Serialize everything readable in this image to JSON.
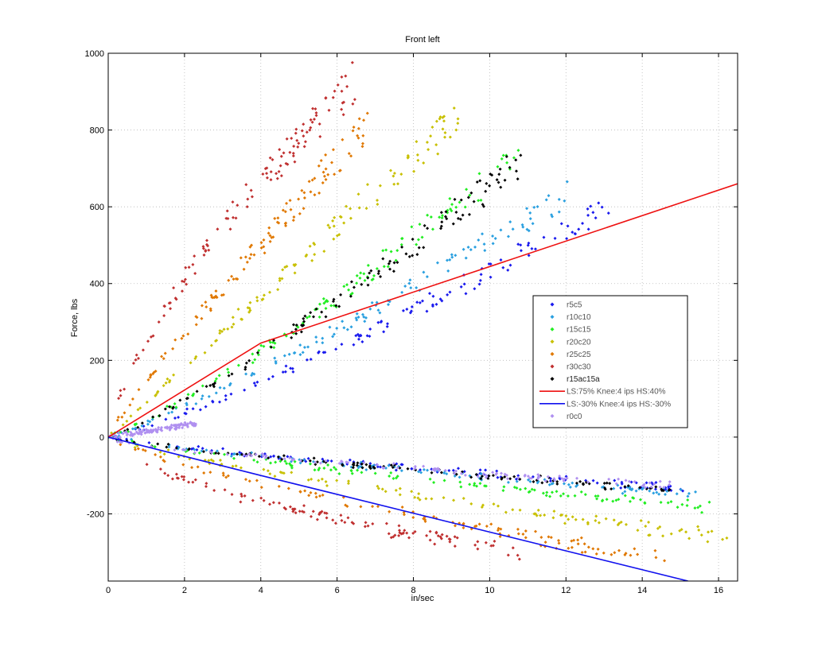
{
  "chart_data": {
    "type": "scatter",
    "title": "Front left",
    "xlabel": "in/sec",
    "ylabel": "Force, lbs",
    "xlim": [
      0,
      16.5
    ],
    "ylim": [
      -375,
      1000
    ],
    "xticks": [
      0,
      2,
      4,
      6,
      8,
      10,
      12,
      14,
      16
    ],
    "yticks": [
      -200,
      0,
      200,
      400,
      600,
      800,
      1000
    ],
    "grid": true,
    "legend_position": "right",
    "series": [
      {
        "name": "r5c5",
        "kind": "points",
        "color": "#1a1aee",
        "marker": "diamond",
        "comp": {
          "end_x": 13.4,
          "end_y": 615,
          "k": 1.2
        },
        "reb": {
          "end_x": 15.2,
          "end_y": -135,
          "k": 0.8
        }
      },
      {
        "name": "r10c10",
        "kind": "points",
        "color": "#2aa0e0",
        "marker": "diamond",
        "comp": {
          "end_x": 12.1,
          "end_y": 635,
          "k": 1.15
        },
        "reb": {
          "end_x": 15.6,
          "end_y": -150,
          "k": 0.8
        }
      },
      {
        "name": "r15c15",
        "kind": "points",
        "color": "#22ee22",
        "marker": "diamond",
        "comp": {
          "end_x": 10.8,
          "end_y": 740,
          "k": 1.2
        },
        "reb": {
          "end_x": 15.8,
          "end_y": -185,
          "k": 0.8
        }
      },
      {
        "name": "r20c20",
        "kind": "points",
        "color": "#c8c000",
        "marker": "diamond",
        "comp": {
          "end_x": 9.2,
          "end_y": 840,
          "k": 1.0
        },
        "reb": {
          "end_x": 16.3,
          "end_y": -265,
          "k": 0.8
        }
      },
      {
        "name": "r25c25",
        "kind": "points",
        "color": "#e07800",
        "marker": "diamond",
        "comp": {
          "end_x": 6.8,
          "end_y": 810,
          "k": 0.9
        },
        "reb": {
          "end_x": 14.6,
          "end_y": -320,
          "k": 0.75
        }
      },
      {
        "name": "r30c30",
        "kind": "points",
        "color": "#c03030",
        "marker": "diamond",
        "comp": {
          "end_x": 6.5,
          "end_y": 930,
          "k": 0.7
        },
        "reb": {
          "end_x": 10.8,
          "end_y": -305,
          "k": 0.6
        }
      },
      {
        "name": "r15ac15a",
        "kind": "points",
        "color": "#000000",
        "marker": "diamond",
        "comp": {
          "end_x": 10.9,
          "end_y": 725,
          "k": 1.2
        },
        "reb": {
          "end_x": 15.0,
          "end_y": -140,
          "k": 0.8
        }
      },
      {
        "name": "LS:75% Knee:4 ips HS:40%",
        "kind": "line",
        "color": "#ee1111",
        "x": [
          0,
          4,
          16.5
        ],
        "y": [
          0,
          245,
          660
        ]
      },
      {
        "name": "LS:-30% Knee:4 ips HS:-30%",
        "kind": "line",
        "color": "#1111ee",
        "x": [
          0,
          4,
          15.2
        ],
        "y": [
          0,
          -100,
          -375
        ]
      },
      {
        "name": "r0c0",
        "kind": "points",
        "color": "#b090f0",
        "marker": "diamond",
        "comp": {
          "end_x": 2.3,
          "end_y": 35,
          "k": 1.0
        },
        "reb": {
          "end_x": 14.8,
          "end_y": -125,
          "k": 0.7
        }
      }
    ]
  }
}
